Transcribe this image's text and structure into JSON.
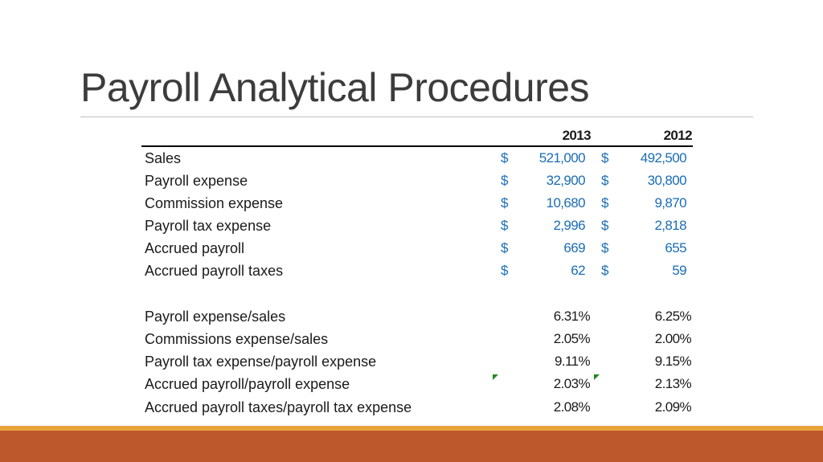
{
  "title": "Payroll Analytical Procedures",
  "table": {
    "headers": [
      "2013",
      "2012"
    ],
    "currency_symbol": "$",
    "amount_rows": [
      {
        "label": "Sales",
        "v2013": "521,000",
        "v2012": "492,500"
      },
      {
        "label": "Payroll expense",
        "v2013": "32,900",
        "v2012": "30,800"
      },
      {
        "label": "Commission expense",
        "v2013": "10,680",
        "v2012": "9,870"
      },
      {
        "label": "Payroll tax expense",
        "v2013": "2,996",
        "v2012": "2,818"
      },
      {
        "label": "Accrued payroll",
        "v2013": "669",
        "v2012": "655"
      },
      {
        "label": "Accrued payroll taxes",
        "v2013": "62",
        "v2012": "59"
      }
    ],
    "ratio_rows": [
      {
        "label": "Payroll expense/sales",
        "v2013": "6.31%",
        "v2012": "6.25%"
      },
      {
        "label": "Commissions expense/sales",
        "v2013": "2.05%",
        "v2012": "2.00%"
      },
      {
        "label": "Payroll tax expense/payroll expense",
        "v2013": "9.11%",
        "v2012": "9.15%"
      },
      {
        "label": "Accrued payroll/payroll expense",
        "v2013": "2.03%",
        "v2012": "2.13%"
      },
      {
        "label": "Accrued payroll taxes/payroll tax expense",
        "v2013": "2.08%",
        "v2012": "2.09%"
      }
    ]
  },
  "colors": {
    "title": "#3c3c3c",
    "amount": "#1a6db5",
    "accent_band": "#bd582c",
    "accent_stripe": "#e8a33a",
    "cell_marker": "#1f8a1f"
  }
}
